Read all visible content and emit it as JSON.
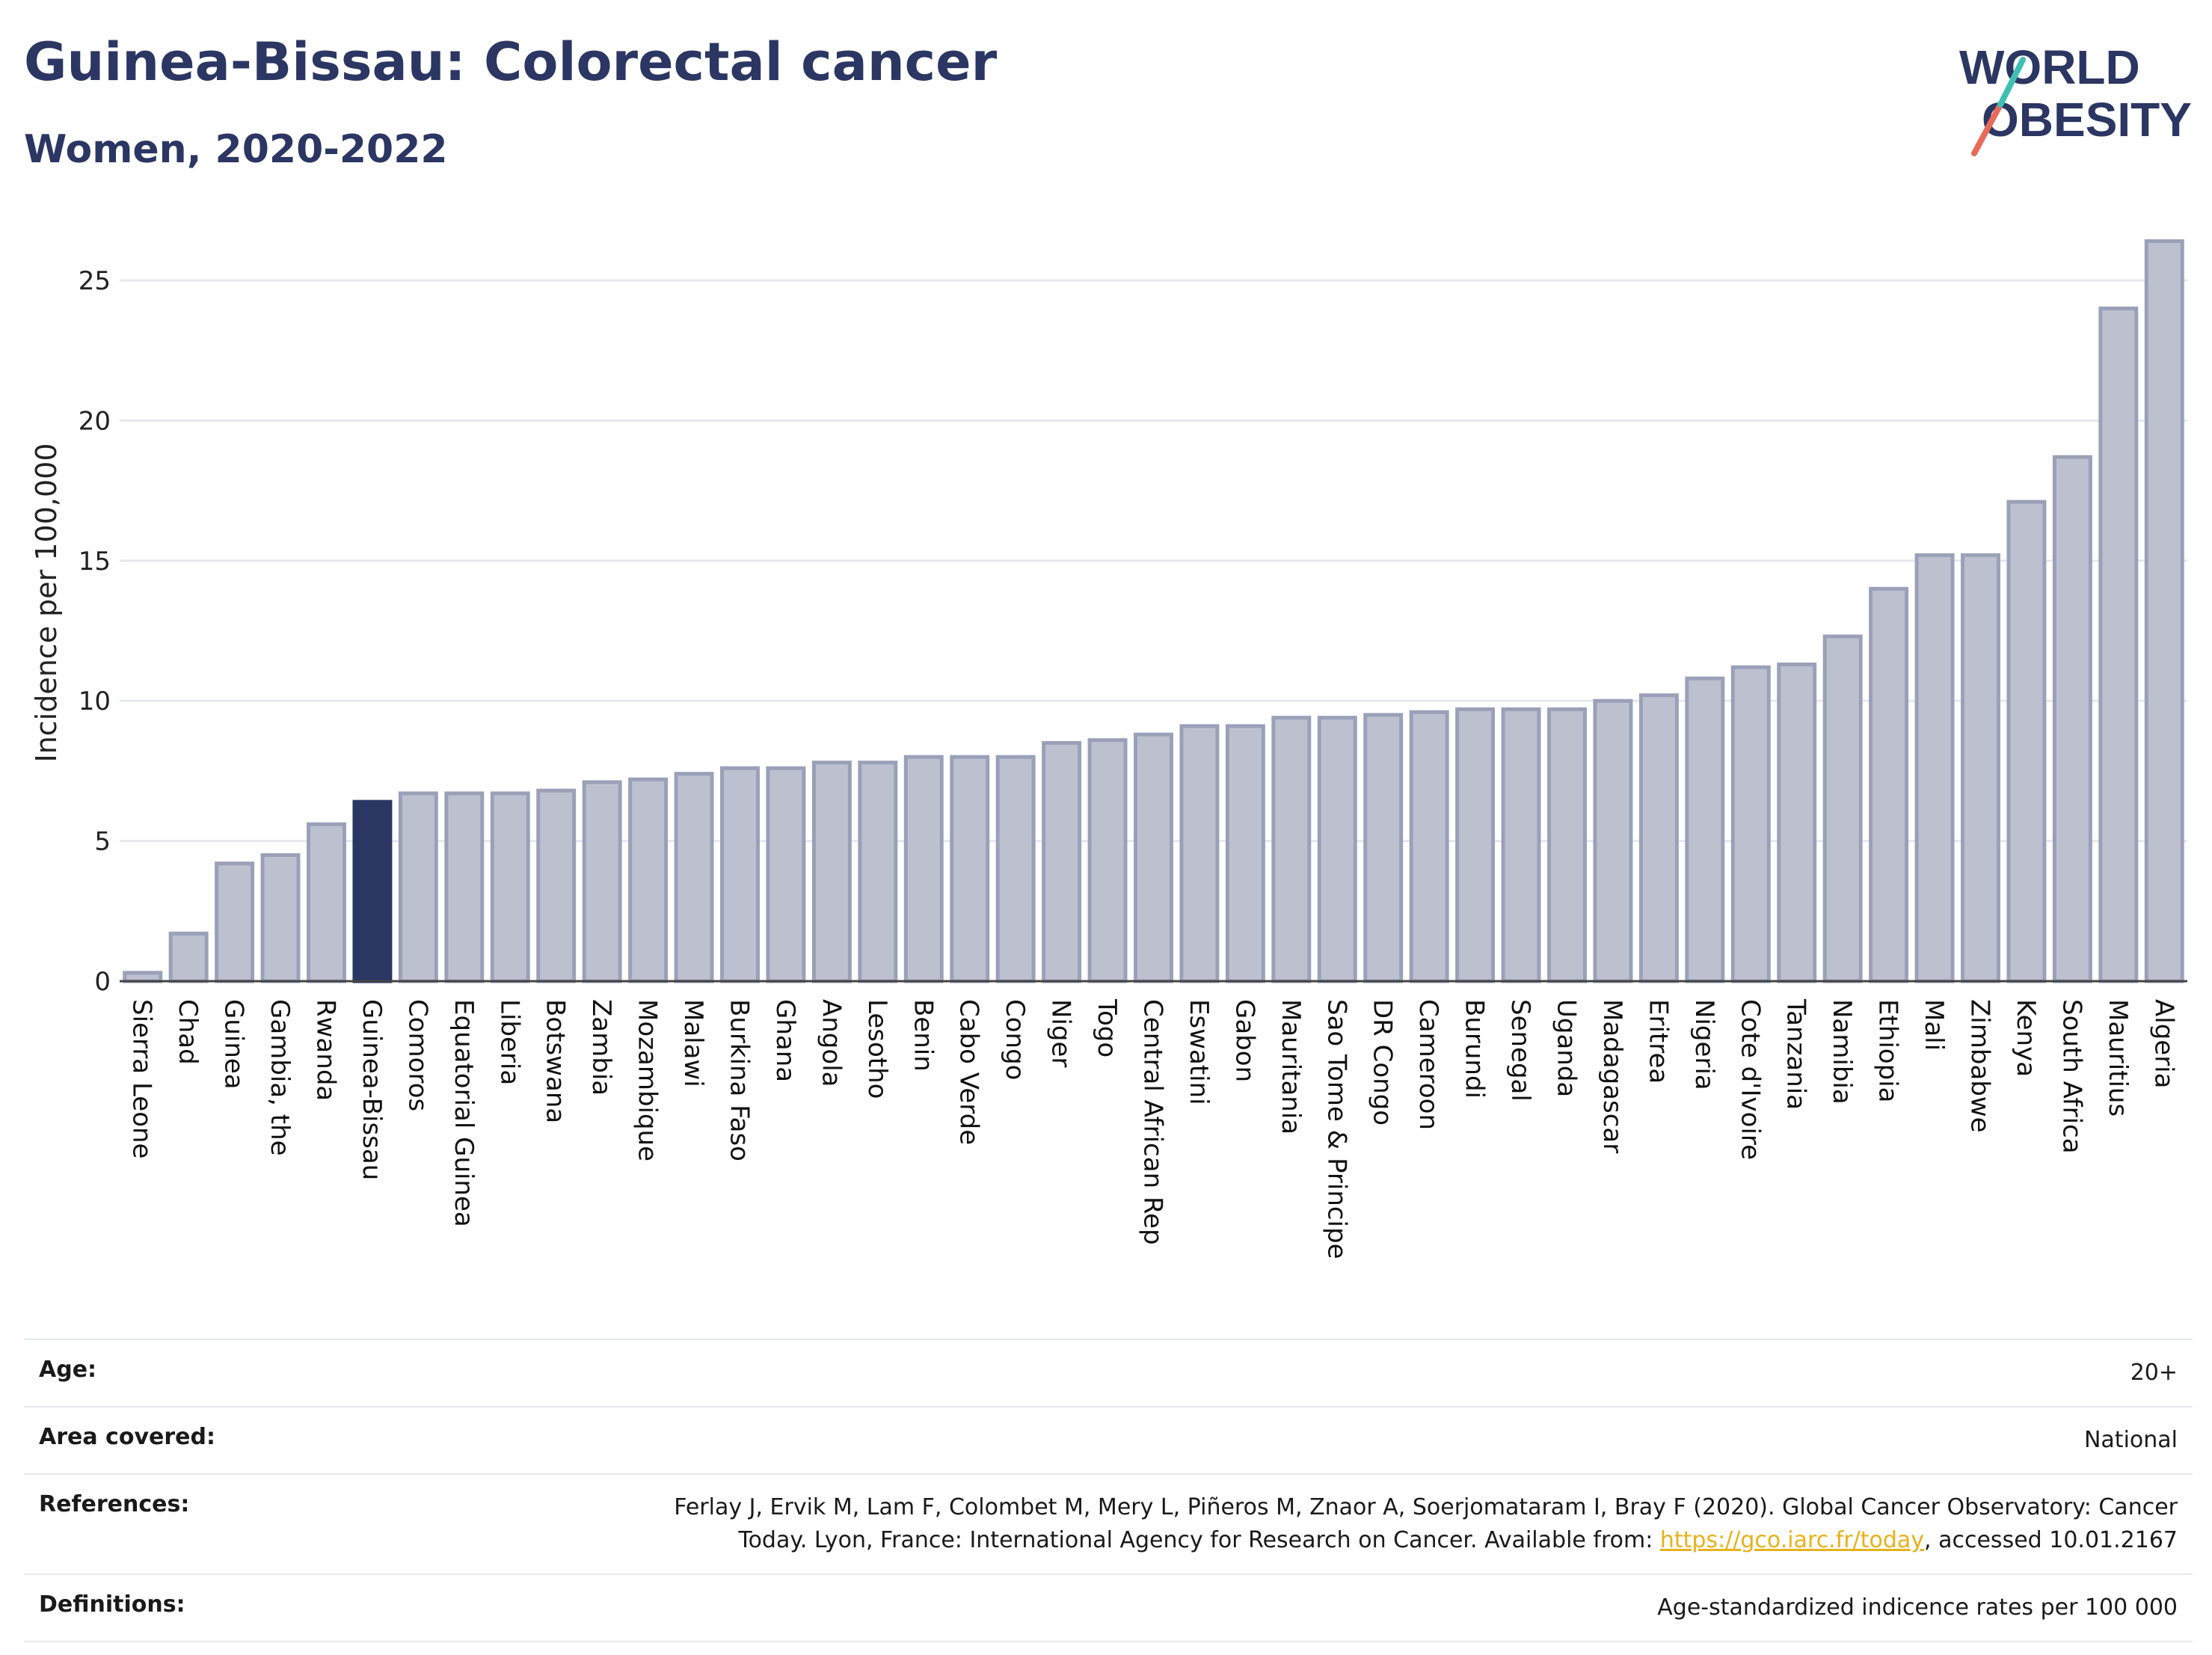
{
  "header": {
    "title": "Guinea-Bissau: Colorectal cancer",
    "subtitle": "Women, 2020-2022"
  },
  "logo": {
    "line1": "WORLD",
    "line2": "OBESITY",
    "accent_colors": [
      "#3fbfb4",
      "#e86a5a"
    ]
  },
  "colors": {
    "bar": "#bdc1cf",
    "bar_stroke": "#9aa0b8",
    "highlight": "#2b3663",
    "grid": "#e6e8ee",
    "axis": "#444444"
  },
  "chart_data": {
    "type": "bar",
    "title": "",
    "xlabel": "",
    "ylabel": "Incidence per 100,000",
    "ylim": [
      0,
      27
    ],
    "yticks": [
      0,
      5,
      10,
      15,
      20,
      25
    ],
    "highlight": "Guinea-Bissau",
    "grid": true,
    "categories": [
      "Sierra Leone",
      "Chad",
      "Guinea",
      "Gambia, the",
      "Rwanda",
      "Guinea-Bissau",
      "Comoros",
      "Equatorial Guinea",
      "Liberia",
      "Botswana",
      "Zambia",
      "Mozambique",
      "Malawi",
      "Burkina Faso",
      "Ghana",
      "Angola",
      "Lesotho",
      "Benin",
      "Cabo Verde",
      "Congo",
      "Niger",
      "Togo",
      "Central African Rep",
      "Eswatini",
      "Gabon",
      "Mauritania",
      "Sao Tome & Principe",
      "DR Congo",
      "Cameroon",
      "Burundi",
      "Senegal",
      "Uganda",
      "Madagascar",
      "Eritrea",
      "Nigeria",
      "Cote d'Ivoire",
      "Tanzania",
      "Namibia",
      "Ethiopia",
      "Mali",
      "Zimbabwe",
      "Kenya",
      "South Africa",
      "Mauritius",
      "Algeria"
    ],
    "values": [
      0.3,
      1.7,
      4.2,
      4.5,
      5.6,
      6.4,
      6.7,
      6.7,
      6.7,
      6.8,
      7.1,
      7.2,
      7.4,
      7.6,
      7.6,
      7.8,
      7.8,
      8.0,
      8.0,
      8.0,
      8.5,
      8.6,
      8.8,
      9.1,
      9.1,
      9.4,
      9.4,
      9.5,
      9.6,
      9.7,
      9.7,
      9.7,
      10.0,
      10.2,
      10.8,
      11.2,
      11.3,
      12.3,
      14.0,
      15.2,
      15.2,
      17.1,
      18.7,
      24.0,
      26.4
    ]
  },
  "footer": {
    "rows": [
      {
        "label": "Age:",
        "value": "20+"
      },
      {
        "label": "Area covered:",
        "value": "National"
      },
      {
        "label": "References:",
        "value_pre": "Ferlay J, Ervik M, Lam F, Colombet M, Mery L, Piñeros M, Znaor A, Soerjomataram I, Bray F (2020). Global Cancer Observatory: Cancer Today. Lyon, France: International Agency for Research on Cancer. Available from: ",
        "link": "https://gco.iarc.fr/today",
        "value_post": ", accessed 10.01.2167"
      },
      {
        "label": "Definitions:",
        "value": "Age-standardized indicence rates per 100 000"
      }
    ]
  }
}
